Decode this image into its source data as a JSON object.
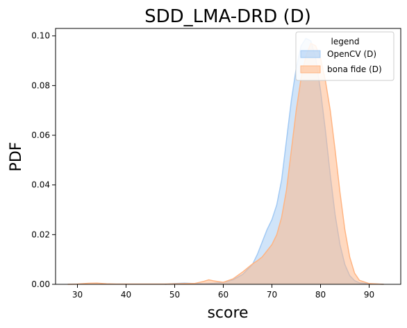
{
  "chart_data": {
    "type": "area",
    "title": "SDD_LMA-DRD (D)",
    "xlabel": "score",
    "ylabel": "PDF",
    "xlim": [
      25.5,
      96.5
    ],
    "ylim": [
      0,
      0.103
    ],
    "xticks": [
      "30",
      "40",
      "50",
      "60",
      "70",
      "80",
      "90"
    ],
    "yticks": [
      "0.00",
      "0.02",
      "0.04",
      "0.06",
      "0.08",
      "0.10"
    ],
    "grid": false,
    "legend": {
      "title": "legend",
      "placement": "top-right"
    },
    "series": [
      {
        "name": "OpenCV (D)",
        "color": "#a1c9f4",
        "x": [
          48,
          50,
          52,
          54,
          56,
          58,
          60,
          62,
          64,
          66,
          67,
          68,
          69,
          70,
          71,
          72,
          73,
          74,
          75,
          76,
          77,
          78,
          79,
          80,
          81,
          82,
          83,
          84,
          85,
          86,
          87,
          88,
          90,
          93
        ],
        "y": [
          0,
          0.0003,
          0.0005,
          0.0003,
          0.0002,
          0.0004,
          0.0008,
          0.0018,
          0.004,
          0.008,
          0.012,
          0.017,
          0.022,
          0.026,
          0.032,
          0.042,
          0.058,
          0.074,
          0.087,
          0.096,
          0.099,
          0.098,
          0.091,
          0.078,
          0.062,
          0.044,
          0.028,
          0.016,
          0.008,
          0.0035,
          0.0015,
          0.0006,
          0.0002,
          0
        ]
      },
      {
        "name": "bona fide (D)",
        "color": "#ffb482",
        "x": [
          28,
          30,
          32,
          34,
          36,
          38,
          40,
          42,
          44,
          46,
          48,
          50,
          52,
          54,
          56,
          57,
          58,
          60,
          62,
          64,
          66,
          67,
          68,
          69,
          70,
          71,
          72,
          73,
          74,
          75,
          76,
          77,
          78,
          79,
          80,
          81,
          82,
          83,
          84,
          85,
          86,
          87,
          88,
          90,
          93
        ],
        "y": [
          0,
          0.0001,
          0.0004,
          0.0005,
          0.0002,
          0.0001,
          0.0001,
          0.0001,
          0.0001,
          0.0001,
          0.0001,
          0.0002,
          0.0003,
          0.0003,
          0.0012,
          0.0018,
          0.0014,
          0.0008,
          0.0022,
          0.005,
          0.0082,
          0.0095,
          0.011,
          0.0135,
          0.016,
          0.02,
          0.027,
          0.038,
          0.054,
          0.07,
          0.083,
          0.092,
          0.097,
          0.096,
          0.091,
          0.082,
          0.07,
          0.054,
          0.037,
          0.022,
          0.011,
          0.0045,
          0.0016,
          0.0003,
          0
        ]
      }
    ]
  }
}
